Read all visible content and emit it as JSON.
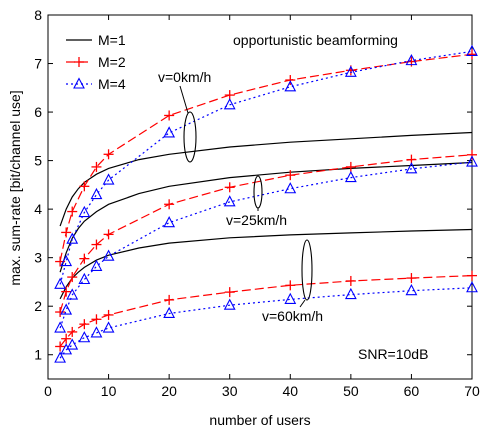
{
  "chart_data": {
    "type": "line",
    "title": "",
    "xlabel": "number of users",
    "ylabel": "max. sum-rate [bit/channel use]",
    "xlim": [
      0,
      70
    ],
    "ylim": [
      0.5,
      8
    ],
    "xticks": [
      0,
      10,
      20,
      30,
      40,
      50,
      60,
      70
    ],
    "yticks": [
      1,
      2,
      3,
      4,
      5,
      6,
      7,
      8
    ],
    "grid": false,
    "legend_position": "top-left",
    "text_annotations": {
      "header": "opportunistic beamforming",
      "v0": "v=0km/h",
      "v25": "v=25km/h",
      "v60": "v=60km/h",
      "snr": "SNR=10dB"
    },
    "legend": [
      {
        "label": "M=1",
        "color": "#000000",
        "dash": "solid",
        "marker": "none"
      },
      {
        "label": "M=2",
        "color": "#ff0000",
        "dash": "dashed",
        "marker": "plus"
      },
      {
        "label": "M=4",
        "color": "#0000ff",
        "dash": "dotted",
        "marker": "triangle"
      }
    ],
    "series": [
      {
        "legend": "M=1",
        "group": "v=0km/h",
        "x": [
          2,
          3,
          4,
          5,
          6,
          8,
          10,
          15,
          20,
          30,
          40,
          50,
          60,
          70
        ],
        "y": [
          3.65,
          4.0,
          4.25,
          4.42,
          4.55,
          4.72,
          4.84,
          5.02,
          5.13,
          5.28,
          5.38,
          5.45,
          5.52,
          5.58
        ]
      },
      {
        "legend": "M=1",
        "group": "v=25km/h",
        "x": [
          2,
          3,
          4,
          5,
          6,
          8,
          10,
          15,
          20,
          30,
          40,
          50,
          60,
          70
        ],
        "y": [
          2.7,
          3.1,
          3.4,
          3.6,
          3.75,
          3.95,
          4.1,
          4.32,
          4.47,
          4.65,
          4.76,
          4.84,
          4.9,
          4.96
        ]
      },
      {
        "legend": "M=1",
        "group": "v=60km/h",
        "x": [
          2,
          3,
          4,
          5,
          6,
          8,
          10,
          15,
          20,
          30,
          40,
          50,
          60,
          70
        ],
        "y": [
          2.15,
          2.4,
          2.58,
          2.7,
          2.8,
          2.95,
          3.05,
          3.2,
          3.3,
          3.41,
          3.47,
          3.51,
          3.55,
          3.58
        ]
      },
      {
        "legend": "M=2",
        "group": "v=0km/h",
        "x": [
          2,
          3,
          4,
          6,
          8,
          10,
          20,
          30,
          40,
          50,
          60,
          70
        ],
        "y": [
          2.92,
          3.52,
          3.95,
          4.47,
          4.87,
          5.13,
          5.93,
          6.35,
          6.66,
          6.86,
          7.04,
          7.19
        ]
      },
      {
        "legend": "M=2",
        "group": "v=25km/h",
        "x": [
          2,
          3,
          4,
          6,
          8,
          10,
          20,
          30,
          40,
          50,
          60,
          70
        ],
        "y": [
          1.88,
          2.3,
          2.6,
          2.98,
          3.27,
          3.48,
          4.1,
          4.45,
          4.7,
          4.87,
          5.02,
          5.12
        ]
      },
      {
        "legend": "M=2",
        "group": "v=60km/h",
        "x": [
          2,
          3,
          4,
          6,
          8,
          10,
          20,
          30,
          40,
          50,
          60,
          70
        ],
        "y": [
          1.17,
          1.33,
          1.47,
          1.63,
          1.73,
          1.82,
          2.13,
          2.29,
          2.43,
          2.52,
          2.58,
          2.63
        ]
      },
      {
        "legend": "M=4",
        "group": "v=0km/h",
        "x": [
          2,
          3,
          4,
          6,
          8,
          10,
          20,
          30,
          40,
          50,
          60,
          70
        ],
        "y": [
          2.45,
          2.92,
          3.38,
          3.93,
          4.3,
          4.6,
          5.57,
          6.15,
          6.52,
          6.82,
          7.06,
          7.25
        ]
      },
      {
        "legend": "M=4",
        "group": "v=25km/h",
        "x": [
          2,
          3,
          4,
          6,
          8,
          10,
          20,
          30,
          40,
          50,
          60,
          70
        ],
        "y": [
          1.55,
          1.92,
          2.23,
          2.55,
          2.82,
          3.03,
          3.72,
          4.15,
          4.42,
          4.65,
          4.83,
          4.97
        ]
      },
      {
        "legend": "M=4",
        "group": "v=60km/h",
        "x": [
          2,
          3,
          4,
          6,
          8,
          10,
          20,
          30,
          40,
          50,
          60,
          70
        ],
        "y": [
          0.93,
          1.1,
          1.2,
          1.35,
          1.45,
          1.55,
          1.85,
          2.02,
          2.14,
          2.24,
          2.32,
          2.38
        ]
      }
    ]
  }
}
